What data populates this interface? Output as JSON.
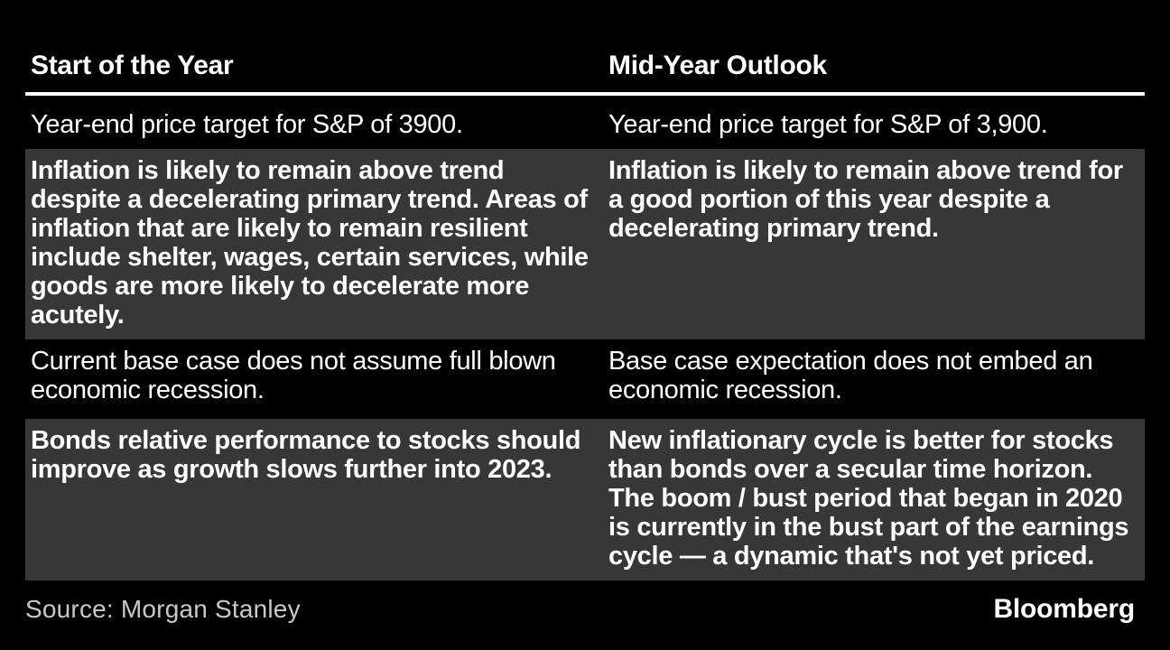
{
  "table": {
    "columns": [
      {
        "label": "Start of the Year"
      },
      {
        "label": "Mid-Year Outlook"
      }
    ],
    "rows": [
      {
        "start": "Year-end price target for S&P of 3900.",
        "mid": "Year-end price target for S&P of 3,900.",
        "emphasis": false
      },
      {
        "start": "Inflation is likely to remain above trend despite a decelerating primary trend. Areas of inflation that are likely to remain resilient include shelter, wages, certain services, while goods are more likely to decelerate more acutely.",
        "mid": "Inflation is likely to remain above trend for a good portion of this year despite a decelerating primary trend.",
        "emphasis": true
      },
      {
        "start": "Current base case does not assume full blown economic recession.",
        "mid": "Base case expectation does not embed an economic recession.",
        "emphasis": false
      },
      {
        "start": "Bonds relative performance to stocks should improve as growth slows further into 2023.",
        "mid": "New inflationary cycle is better for stocks than bonds over a secular time horizon. The boom / bust period that began in 2020 is currently in the bust part of the earnings cycle — a dynamic that's not yet priced.",
        "emphasis": true
      }
    ]
  },
  "footer": {
    "source": "Source: Morgan Stanley",
    "brand": "Bloomberg"
  },
  "colors": {
    "background": "#000000",
    "row_highlight": "#373737",
    "text": "#ffffff",
    "source_text": "#c8c8c8",
    "rule": "#ffffff"
  }
}
